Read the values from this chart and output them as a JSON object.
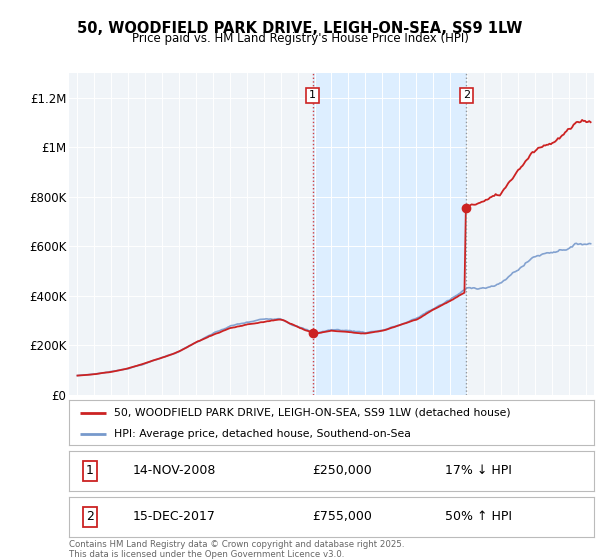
{
  "title_line1": "50, WOODFIELD PARK DRIVE, LEIGH-ON-SEA, SS9 1LW",
  "title_line2": "Price paid vs. HM Land Registry's House Price Index (HPI)",
  "ylabel_ticks": [
    "£0",
    "£200K",
    "£400K",
    "£600K",
    "£800K",
    "£1M",
    "£1.2M"
  ],
  "ytick_values": [
    0,
    200000,
    400000,
    600000,
    800000,
    1000000,
    1200000
  ],
  "ylim": [
    0,
    1300000
  ],
  "xlim_start": 1994.5,
  "xlim_end": 2025.5,
  "legend_line1": "50, WOODFIELD PARK DRIVE, LEIGH-ON-SEA, SS9 1LW (detached house)",
  "legend_line2": "HPI: Average price, detached house, Southend-on-Sea",
  "sale1_label": "1",
  "sale1_date": "14-NOV-2008",
  "sale1_price": "£250,000",
  "sale1_hpi": "17% ↓ HPI",
  "sale2_label": "2",
  "sale2_date": "15-DEC-2017",
  "sale2_price": "£755,000",
  "sale2_hpi": "50% ↑ HPI",
  "footer": "Contains HM Land Registry data © Crown copyright and database right 2025.\nThis data is licensed under the Open Government Licence v3.0.",
  "red_color": "#cc2222",
  "blue_color": "#7799cc",
  "shade_color": "#ddeeff",
  "marker1_x": 2008.88,
  "marker1_y": 250000,
  "marker2_x": 2017.96,
  "marker2_y": 755000,
  "vline1_x": 2008.88,
  "vline2_x": 2017.96,
  "background_color": "#f0f4f8"
}
